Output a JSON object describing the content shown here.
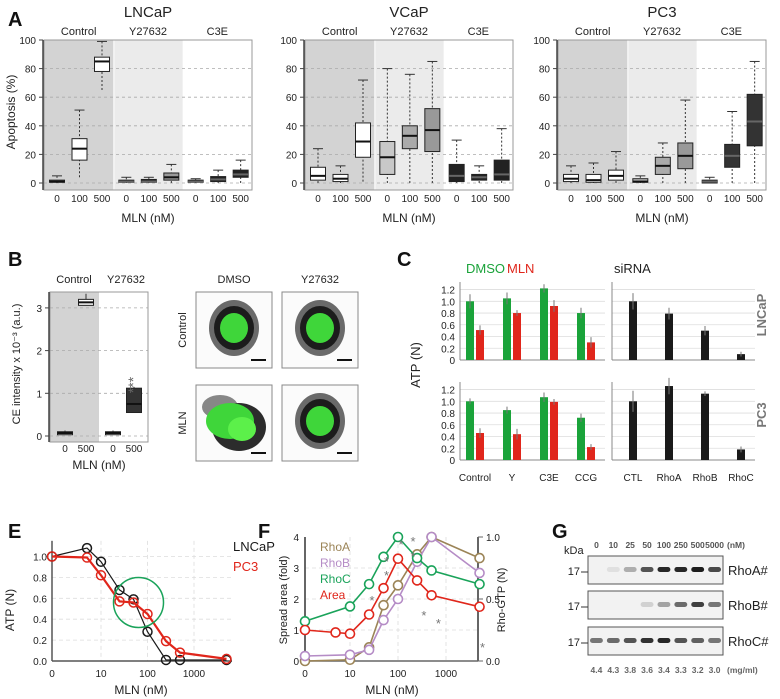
{
  "panel_labels": {
    "a": "A",
    "b": "B",
    "c": "C",
    "e": "E",
    "f": "F",
    "g": "G"
  },
  "chart_data": [
    {
      "type": "box",
      "title": "LNCaP",
      "ylabel": "Apoptosis (%)",
      "xlabel": "MLN (nM)",
      "ylim": [
        0,
        100
      ],
      "yticks": [
        "0",
        "20",
        "40",
        "60",
        "80",
        "100"
      ],
      "doses": [
        "0",
        "100",
        "500"
      ],
      "box_fields": [
        "median",
        "q1",
        "q3",
        "whisker_low",
        "whisker_high",
        "fill"
      ],
      "facets": [
        {
          "name": "Control",
          "bg": "#d3d3d3",
          "boxes": [
            [
              1,
              0.5,
              2,
              0,
              5,
              "#ffffff"
            ],
            [
              24,
              16,
              31,
              4,
              51,
              "#ffffff"
            ],
            [
              85,
              78,
              88,
              65,
              99,
              "#ffffff"
            ]
          ]
        },
        {
          "name": "Y27632",
          "bg": "#ebebeb",
          "boxes": [
            [
              1,
              0.5,
              2,
              0,
              4,
              "#222222"
            ],
            [
              1,
              0.5,
              2.5,
              0,
              4,
              "#222222"
            ],
            [
              4,
              2,
              7,
              0,
              13,
              "#999999"
            ]
          ]
        },
        {
          "name": "C3E",
          "bg": "#ffffff",
          "boxes": [
            [
              1,
              0.5,
              2,
              0,
              3,
              "#222222"
            ],
            [
              2.5,
              1,
              4.5,
              0,
              9,
              "#222222"
            ],
            [
              6,
              4,
              9,
              0,
              16,
              "#222222"
            ]
          ]
        }
      ]
    },
    {
      "type": "box",
      "title": "VCaP",
      "ylabel": "",
      "xlabel": "MLN (nM)",
      "ylim": [
        0,
        100
      ],
      "yticks": [
        "0",
        "20",
        "40",
        "60",
        "80",
        "100"
      ],
      "doses": [
        "0",
        "100",
        "500"
      ],
      "box_fields": [
        "median",
        "q1",
        "q3",
        "whisker_low",
        "whisker_high",
        "fill"
      ],
      "facets": [
        {
          "name": "Control",
          "bg": "#d3d3d3",
          "boxes": [
            [
              5,
              2,
              11,
              0,
              24,
              "#ffffff"
            ],
            [
              3,
              1,
              6,
              0,
              12,
              "#ffffff"
            ],
            [
              29,
              18,
              42,
              1,
              72,
              "#ffffff"
            ]
          ]
        },
        {
          "name": "Y27632",
          "bg": "#ebebeb",
          "boxes": [
            [
              18,
              6,
              29,
              0,
              80,
              "#c8c8c8"
            ],
            [
              33,
              24,
              40,
              0,
              76,
              "#aaaaaa"
            ],
            [
              37,
              22,
              52,
              0,
              85,
              "#999999"
            ]
          ]
        },
        {
          "name": "C3E",
          "bg": "#ffffff",
          "boxes": [
            [
              5,
              1,
              13,
              0,
              30,
              "#222222"
            ],
            [
              4,
              2,
              6,
              0,
              12,
              "#222222"
            ],
            [
              6,
              2,
              16,
              0,
              38,
              "#222222"
            ]
          ]
        }
      ]
    },
    {
      "type": "box",
      "title": "PC3",
      "ylabel": "",
      "xlabel": "MLN (nM)",
      "ylim": [
        0,
        100
      ],
      "yticks": [
        "0",
        "20",
        "40",
        "60",
        "80",
        "100"
      ],
      "doses": [
        "0",
        "100",
        "500"
      ],
      "box_fields": [
        "median",
        "q1",
        "q3",
        "whisker_low",
        "whisker_high",
        "fill"
      ],
      "facets": [
        {
          "name": "Control",
          "bg": "#d3d3d3",
          "boxes": [
            [
              3,
              1,
              6,
              0,
              12,
              "#ffffff"
            ],
            [
              2,
              0.5,
              6,
              0,
              14,
              "#ffffff"
            ],
            [
              5,
              2,
              9,
              0,
              22,
              "#ffffff"
            ]
          ]
        },
        {
          "name": "Y27632",
          "bg": "#ebebeb",
          "boxes": [
            [
              1,
              0.5,
              3,
              0,
              5,
              "#bbbbbb"
            ],
            [
              12,
              6,
              18,
              0,
              28,
              "#aaaaaa"
            ],
            [
              19,
              10,
              28,
              0,
              58,
              "#999999"
            ]
          ]
        },
        {
          "name": "C3E",
          "bg": "#ffffff",
          "boxes": [
            [
              1,
              0,
              2,
              0,
              4,
              "#222222"
            ],
            [
              19,
              11,
              27,
              0,
              50,
              "#333333"
            ],
            [
              43,
              26,
              62,
              0,
              85,
              "#333333"
            ]
          ]
        }
      ]
    },
    {
      "type": "box",
      "title": "",
      "ylabel": "CE intensity x 10⁻³ (a.u.)",
      "xlabel": "MLN (nM)",
      "ylim": [
        0,
        3.3
      ],
      "yticks": [
        "0",
        "1",
        "2",
        "3"
      ],
      "doses": [
        "0",
        "500"
      ],
      "significance": "***",
      "box_fields": [
        "median",
        "q1",
        "q3",
        "whisker_low",
        "whisker_high",
        "fill"
      ],
      "facets": [
        {
          "name": "Control",
          "bg": "#d3d3d3",
          "boxes": [
            [
              0.07,
              0.03,
              0.1,
              0,
              0.13,
              "#ffffff"
            ],
            [
              3.13,
              3.06,
              3.2,
              3.02,
              3.33,
              "#ffffff"
            ]
          ]
        },
        {
          "name": "Y27632",
          "bg": "#ffffff",
          "boxes": [
            [
              0.07,
              0.03,
              0.1,
              0,
              0.13,
              "#ffffff"
            ],
            [
              0.75,
              0.55,
              1.12,
              0.48,
              1.15,
              "#333333"
            ]
          ]
        }
      ],
      "images": {
        "columns": [
          "DMSO",
          "Y27632"
        ],
        "rows": [
          "Control",
          "MLN"
        ]
      }
    },
    {
      "type": "bar",
      "ylabel": "ATP (N)",
      "ylim": [
        0,
        1.3
      ],
      "yticks": [
        "0",
        "0.2",
        "0.4",
        "0.6",
        "0.8",
        "1.0",
        "1.2"
      ],
      "legend": [
        {
          "name": "DMSO",
          "color": "#1aa33a"
        },
        {
          "name": "MLN",
          "color": "#e0261b"
        }
      ],
      "siRNA_label": "siRNA",
      "siRNA_color": "#1a1a1a",
      "categories": [
        "Control",
        "Y",
        "C3E",
        "CCG"
      ],
      "siRNA_categories": [
        "CTL",
        "RhoA",
        "RhoB",
        "RhoC"
      ],
      "rows": [
        {
          "cell": "LNCaP",
          "DMSO": [
            1.0,
            1.05,
            1.22,
            0.8
          ],
          "MLN": [
            0.51,
            0.8,
            0.92,
            0.3
          ],
          "siRNA": [
            1.0,
            0.79,
            0.5,
            0.1
          ],
          "err_DMSO": [
            0.12,
            0.1,
            0.07,
            0.09
          ],
          "err_MLN": [
            0.08,
            0.05,
            0.1,
            0.09
          ],
          "err_siRNA": [
            0.14,
            0.1,
            0.08,
            0.04
          ]
        },
        {
          "cell": "PC3",
          "DMSO": [
            1.0,
            0.85,
            1.07,
            0.72
          ],
          "MLN": [
            0.46,
            0.44,
            0.99,
            0.22
          ],
          "siRNA": [
            1.0,
            1.26,
            1.13,
            0.18
          ],
          "err_DMSO": [
            0.05,
            0.06,
            0.08,
            0.07
          ],
          "err_MLN": [
            0.08,
            0.09,
            0.05,
            0.05
          ],
          "err_siRNA": [
            0.18,
            0.14,
            0.04,
            0.05
          ]
        }
      ]
    },
    {
      "type": "line",
      "xlabel": "MLN (nM)",
      "ylabel": "ATP (N)",
      "xscale": "log",
      "ylim": [
        0,
        1.15
      ],
      "xticks": [
        "0",
        "10",
        "100",
        "1000"
      ],
      "yticks": [
        "0.0",
        "0.2",
        "0.4",
        "0.6",
        "0.8",
        "1.0"
      ],
      "series": [
        {
          "name": "LNCaP",
          "color": "#1a1a1a",
          "x": [
            0,
            5,
            10,
            25,
            50,
            100,
            250,
            500,
            5000
          ],
          "y": [
            1.0,
            1.08,
            0.95,
            0.68,
            0.59,
            0.28,
            0.01,
            0.01,
            0.01
          ]
        },
        {
          "name": "PC3",
          "color": "#e0261b",
          "x": [
            0,
            5,
            10,
            25,
            50,
            100,
            250,
            500,
            5000
          ],
          "y": [
            1.0,
            0.99,
            0.82,
            0.57,
            0.56,
            0.45,
            0.19,
            0.08,
            0.02
          ]
        }
      ],
      "annotation": {
        "type": "circle",
        "color": "#1aa35a",
        "x": 50,
        "y": 0.56
      }
    },
    {
      "type": "line",
      "xlabel": "MLN (nM)",
      "ylabel": "Spread area (fold)",
      "y2label": "Rho-GTP (N)",
      "xscale": "log",
      "ylim": [
        0,
        4
      ],
      "y2lim": [
        0,
        1
      ],
      "xticks": [
        "0",
        "10",
        "100",
        "1000"
      ],
      "yticks": [
        "0",
        "1",
        "2",
        "3",
        "4"
      ],
      "y2ticks": [
        "0.0",
        "0.5",
        "1.0"
      ],
      "series": [
        {
          "name": "RhoA",
          "axis": "right",
          "color": "#9b8457",
          "x": [
            0,
            10,
            25,
            50,
            100,
            250,
            500,
            5000
          ],
          "y": [
            0,
            0.01,
            0.11,
            0.45,
            0.61,
            0.86,
            1.0,
            0.83
          ]
        },
        {
          "name": "RhoB",
          "axis": "right",
          "color": "#b58cc6",
          "x": [
            0,
            10,
            25,
            50,
            100,
            250,
            500,
            5000
          ],
          "y": [
            0.04,
            0.05,
            0.09,
            0.33,
            0.5,
            0.8,
            1.0,
            0.71
          ]
        },
        {
          "name": "RhoC",
          "axis": "right",
          "color": "#1aa35a",
          "x": [
            0,
            10,
            25,
            50,
            100,
            250,
            500,
            5000
          ],
          "y": [
            0.32,
            0.44,
            0.62,
            0.84,
            1.0,
            0.83,
            0.73,
            0.62
          ]
        },
        {
          "name": "Area",
          "axis": "left",
          "color": "#e0261b",
          "x": [
            0,
            5,
            10,
            25,
            50,
            100,
            250,
            500,
            5000
          ],
          "y": [
            1.0,
            0.92,
            0.88,
            1.5,
            2.35,
            3.3,
            2.6,
            2.12,
            1.75
          ]
        }
      ],
      "significance": "*"
    },
    {
      "type": "blot",
      "unit_label": "kDa",
      "dose_unit": "(nM)",
      "conc_unit": "(mg/ml)",
      "doses": [
        "0",
        "10",
        "25",
        "50",
        "100",
        "250",
        "500",
        "5000"
      ],
      "concentrations": [
        "4.4",
        "4.3",
        "3.8",
        "3.6",
        "3.4",
        "3.3",
        "3.2",
        "3.0"
      ],
      "bands": [
        {
          "name": "RhoA#",
          "kda": "17",
          "intensity": [
            0,
            0.08,
            0.3,
            0.7,
            0.9,
            0.9,
            0.95,
            0.75
          ]
        },
        {
          "name": "RhoB#",
          "kda": "17",
          "intensity": [
            0,
            0,
            0,
            0.15,
            0.35,
            0.6,
            0.8,
            0.55
          ]
        },
        {
          "name": "RhoC#",
          "kda": "17",
          "intensity": [
            0.55,
            0.6,
            0.7,
            0.85,
            0.9,
            0.7,
            0.65,
            0.55
          ]
        }
      ]
    }
  ]
}
